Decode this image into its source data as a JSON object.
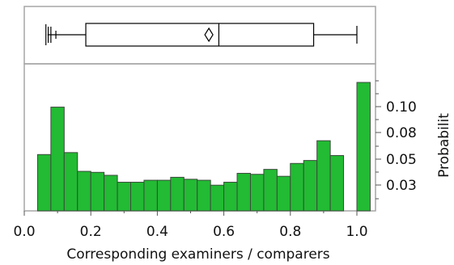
{
  "chart_data": [
    {
      "type": "box",
      "box": {
        "whisker_low": 0.07,
        "q1": 0.185,
        "median": 0.585,
        "mean": 0.555,
        "q3": 0.87,
        "whisker_high": 1.0
      },
      "outliers": [
        0.065,
        0.072,
        0.08,
        0.095
      ]
    },
    {
      "type": "bar",
      "subtype": "histogram",
      "xlabel": "Corresponding examiners / comparers",
      "ylabel": "Probabilit",
      "x_ticks": [
        "0.0",
        "0.2",
        "0.4",
        "0.6",
        "0.8",
        "1.0"
      ],
      "xlim": [
        0,
        1.08
      ],
      "y_ticks": [
        "0.03",
        "0.05",
        "0.08",
        "0.10"
      ],
      "bin_width": 0.04,
      "bins": [
        {
          "x0": 0.04,
          "value": 0.057
        },
        {
          "x0": 0.08,
          "value": 0.105
        },
        {
          "x0": 0.12,
          "value": 0.059
        },
        {
          "x0": 0.16,
          "value": 0.04
        },
        {
          "x0": 0.2,
          "value": 0.039
        },
        {
          "x0": 0.24,
          "value": 0.036
        },
        {
          "x0": 0.28,
          "value": 0.029
        },
        {
          "x0": 0.32,
          "value": 0.029
        },
        {
          "x0": 0.36,
          "value": 0.031
        },
        {
          "x0": 0.4,
          "value": 0.031
        },
        {
          "x0": 0.44,
          "value": 0.034
        },
        {
          "x0": 0.48,
          "value": 0.032
        },
        {
          "x0": 0.52,
          "value": 0.031
        },
        {
          "x0": 0.56,
          "value": 0.026
        },
        {
          "x0": 0.6,
          "value": 0.029
        },
        {
          "x0": 0.64,
          "value": 0.038
        },
        {
          "x0": 0.68,
          "value": 0.037
        },
        {
          "x0": 0.72,
          "value": 0.042
        },
        {
          "x0": 0.76,
          "value": 0.035
        },
        {
          "x0": 0.8,
          "value": 0.048
        },
        {
          "x0": 0.84,
          "value": 0.051
        },
        {
          "x0": 0.88,
          "value": 0.071
        },
        {
          "x0": 0.92,
          "value": 0.056
        },
        {
          "x0": 1.0,
          "value": 0.13
        }
      ],
      "bar_color": "#22bb33"
    }
  ]
}
